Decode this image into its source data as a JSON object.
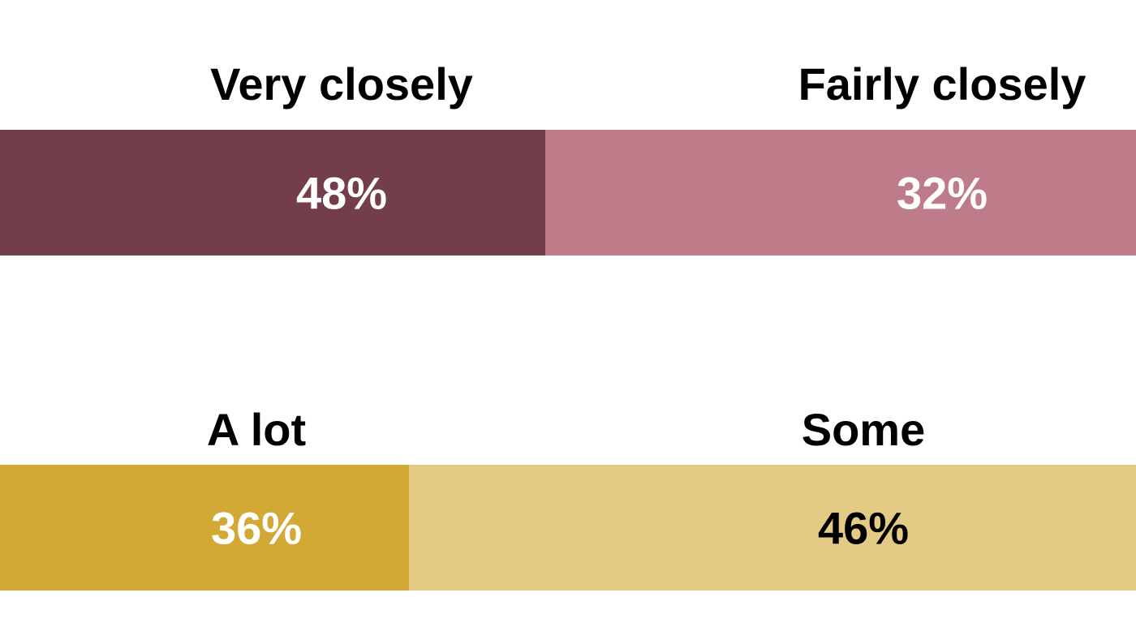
{
  "chart_data": [
    {
      "type": "bar",
      "orientation": "horizontal-stacked",
      "xlim": [
        0,
        100
      ],
      "unit": "%",
      "segments": [
        {
          "name": "Very closely",
          "value": 48,
          "label": "48%",
          "color": "#733d49",
          "label_color": "#ffffff"
        },
        {
          "name": "Fairly closely",
          "value": 32,
          "label": "32%",
          "color": "#be7b89",
          "label_color": "#ffffff"
        }
      ]
    },
    {
      "type": "bar",
      "orientation": "horizontal-stacked",
      "xlim": [
        0,
        100
      ],
      "unit": "%",
      "segments": [
        {
          "name": "A lot",
          "value": 36,
          "label": "36%",
          "color": "#d3a935",
          "label_color": "#ffffff"
        },
        {
          "name": "Some",
          "value": 46,
          "label": "46%",
          "color": "#e3cb86",
          "label_color": "#000000"
        }
      ]
    }
  ]
}
